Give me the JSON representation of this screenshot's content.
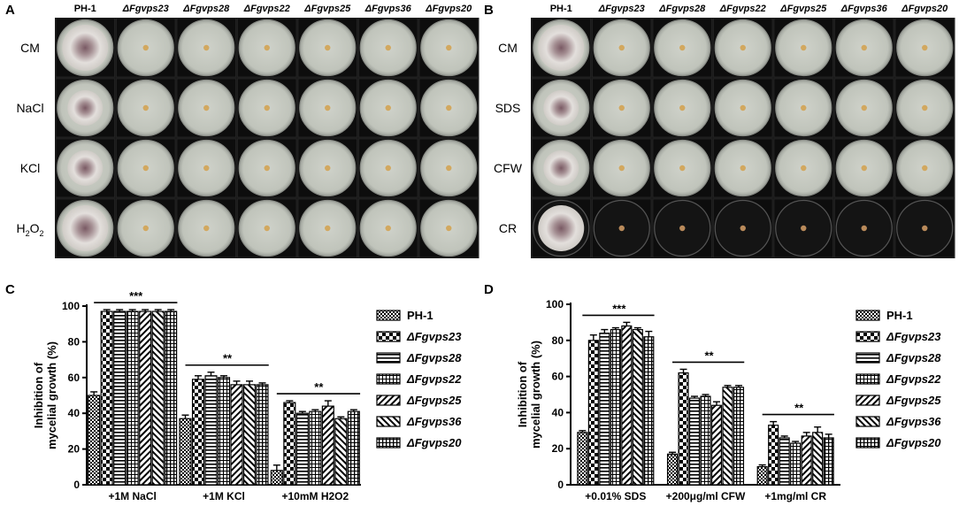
{
  "panels": {
    "A": {
      "letter": "A",
      "columns": [
        "PH-1",
        "ΔFgvps23",
        "ΔFgvps28",
        "ΔFgvps22",
        "ΔFgvps25",
        "ΔFgvps36",
        "ΔFgvps20"
      ],
      "rows": [
        "CM",
        "NaCl",
        "KCl",
        "H2O2"
      ]
    },
    "B": {
      "letter": "B",
      "columns": [
        "PH-1",
        "ΔFgvps23",
        "ΔFgvps28",
        "ΔFgvps22",
        "ΔFgvps25",
        "ΔFgvps36",
        "ΔFgvps20"
      ],
      "rows": [
        "CM",
        "SDS",
        "CFW",
        "CR"
      ]
    },
    "C": {
      "letter": "C"
    },
    "D": {
      "letter": "D"
    }
  },
  "colors": {
    "plate_bg": "#1a1a1a",
    "agar": "#c7cac2",
    "cr_agar": "#141414",
    "wt_colony": "#d9d5d0"
  },
  "chart_data": [
    {
      "type": "bar",
      "panel": "C",
      "ylabel": "Inhibition of mycelial growth (%)",
      "ylim": [
        0,
        100
      ],
      "yticks": [
        0,
        20,
        40,
        60,
        80,
        100
      ],
      "categories": [
        "+1M NaCl",
        "+1M KCl",
        "+10mM H2O2"
      ],
      "series": [
        {
          "name": "PH-1",
          "values": [
            50,
            37,
            8
          ],
          "errors": [
            2,
            2,
            3
          ]
        },
        {
          "name": "ΔFgvps23",
          "values": [
            97,
            59,
            46
          ],
          "errors": [
            1,
            2,
            1
          ]
        },
        {
          "name": "ΔFgvps28",
          "values": [
            97,
            61,
            40
          ],
          "errors": [
            1,
            2,
            1
          ]
        },
        {
          "name": "ΔFgvps22",
          "values": [
            97,
            60,
            41
          ],
          "errors": [
            1,
            1,
            1
          ]
        },
        {
          "name": "ΔFgvps25",
          "values": [
            97,
            56,
            44
          ],
          "errors": [
            1,
            2,
            3
          ]
        },
        {
          "name": "ΔFgvps36",
          "values": [
            97,
            56,
            37
          ],
          "errors": [
            1,
            2,
            1
          ]
        },
        {
          "name": "ΔFgvps20",
          "values": [
            97,
            56,
            41
          ],
          "errors": [
            1,
            1,
            1
          ]
        }
      ],
      "significance": [
        "***",
        "**",
        "**"
      ],
      "legend": "right"
    },
    {
      "type": "bar",
      "panel": "D",
      "ylabel": "Inhibition of mycelial growth (%)",
      "ylim": [
        0,
        100
      ],
      "yticks": [
        0,
        20,
        40,
        60,
        80,
        100
      ],
      "categories": [
        "+0.01% SDS",
        "+200μg/ml CFW",
        "+1mg/ml CR"
      ],
      "series": [
        {
          "name": "PH-1",
          "values": [
            29,
            17,
            10
          ],
          "errors": [
            1,
            1,
            1
          ]
        },
        {
          "name": "ΔFgvps23",
          "values": [
            80,
            62,
            33
          ],
          "errors": [
            3,
            2,
            2
          ]
        },
        {
          "name": "ΔFgvps28",
          "values": [
            84,
            48,
            26
          ],
          "errors": [
            2,
            1,
            1
          ]
        },
        {
          "name": "ΔFgvps22",
          "values": [
            86,
            49,
            23
          ],
          "errors": [
            1,
            1,
            1
          ]
        },
        {
          "name": "ΔFgvps25",
          "values": [
            88,
            44,
            27
          ],
          "errors": [
            2,
            2,
            2
          ]
        },
        {
          "name": "ΔFgvps36",
          "values": [
            86,
            54,
            29
          ],
          "errors": [
            1,
            1,
            3
          ]
        },
        {
          "name": "ΔFgvps20",
          "values": [
            82,
            54,
            26
          ],
          "errors": [
            3,
            1,
            2
          ]
        }
      ],
      "significance": [
        "***",
        "**",
        "**"
      ],
      "legend": "right"
    }
  ]
}
